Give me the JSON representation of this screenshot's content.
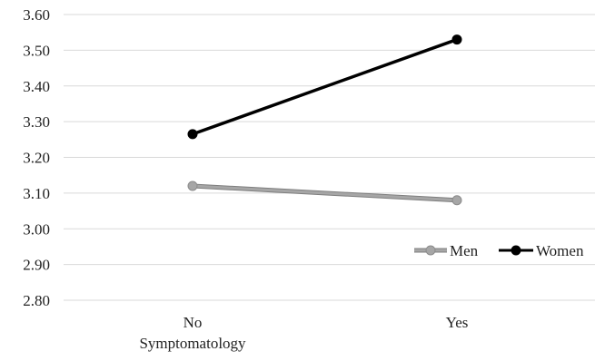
{
  "chart_data": {
    "type": "line",
    "title": "",
    "xlabel": "",
    "ylabel": "",
    "categories": [
      [
        "No",
        "Symptomatology"
      ],
      [
        "Yes"
      ]
    ],
    "yticks": [
      "2.80",
      "2.90",
      "3.00",
      "3.10",
      "3.20",
      "3.30",
      "3.40",
      "3.50",
      "3.60"
    ],
    "ylim": [
      2.8,
      3.6
    ],
    "grid": true,
    "legend_position": "bottom-right",
    "series": [
      {
        "name": "Men",
        "values": [
          3.12,
          3.08
        ],
        "color": "#a6a6a6"
      },
      {
        "name": "Women",
        "values": [
          3.265,
          3.53
        ],
        "color": "#000000"
      }
    ]
  }
}
